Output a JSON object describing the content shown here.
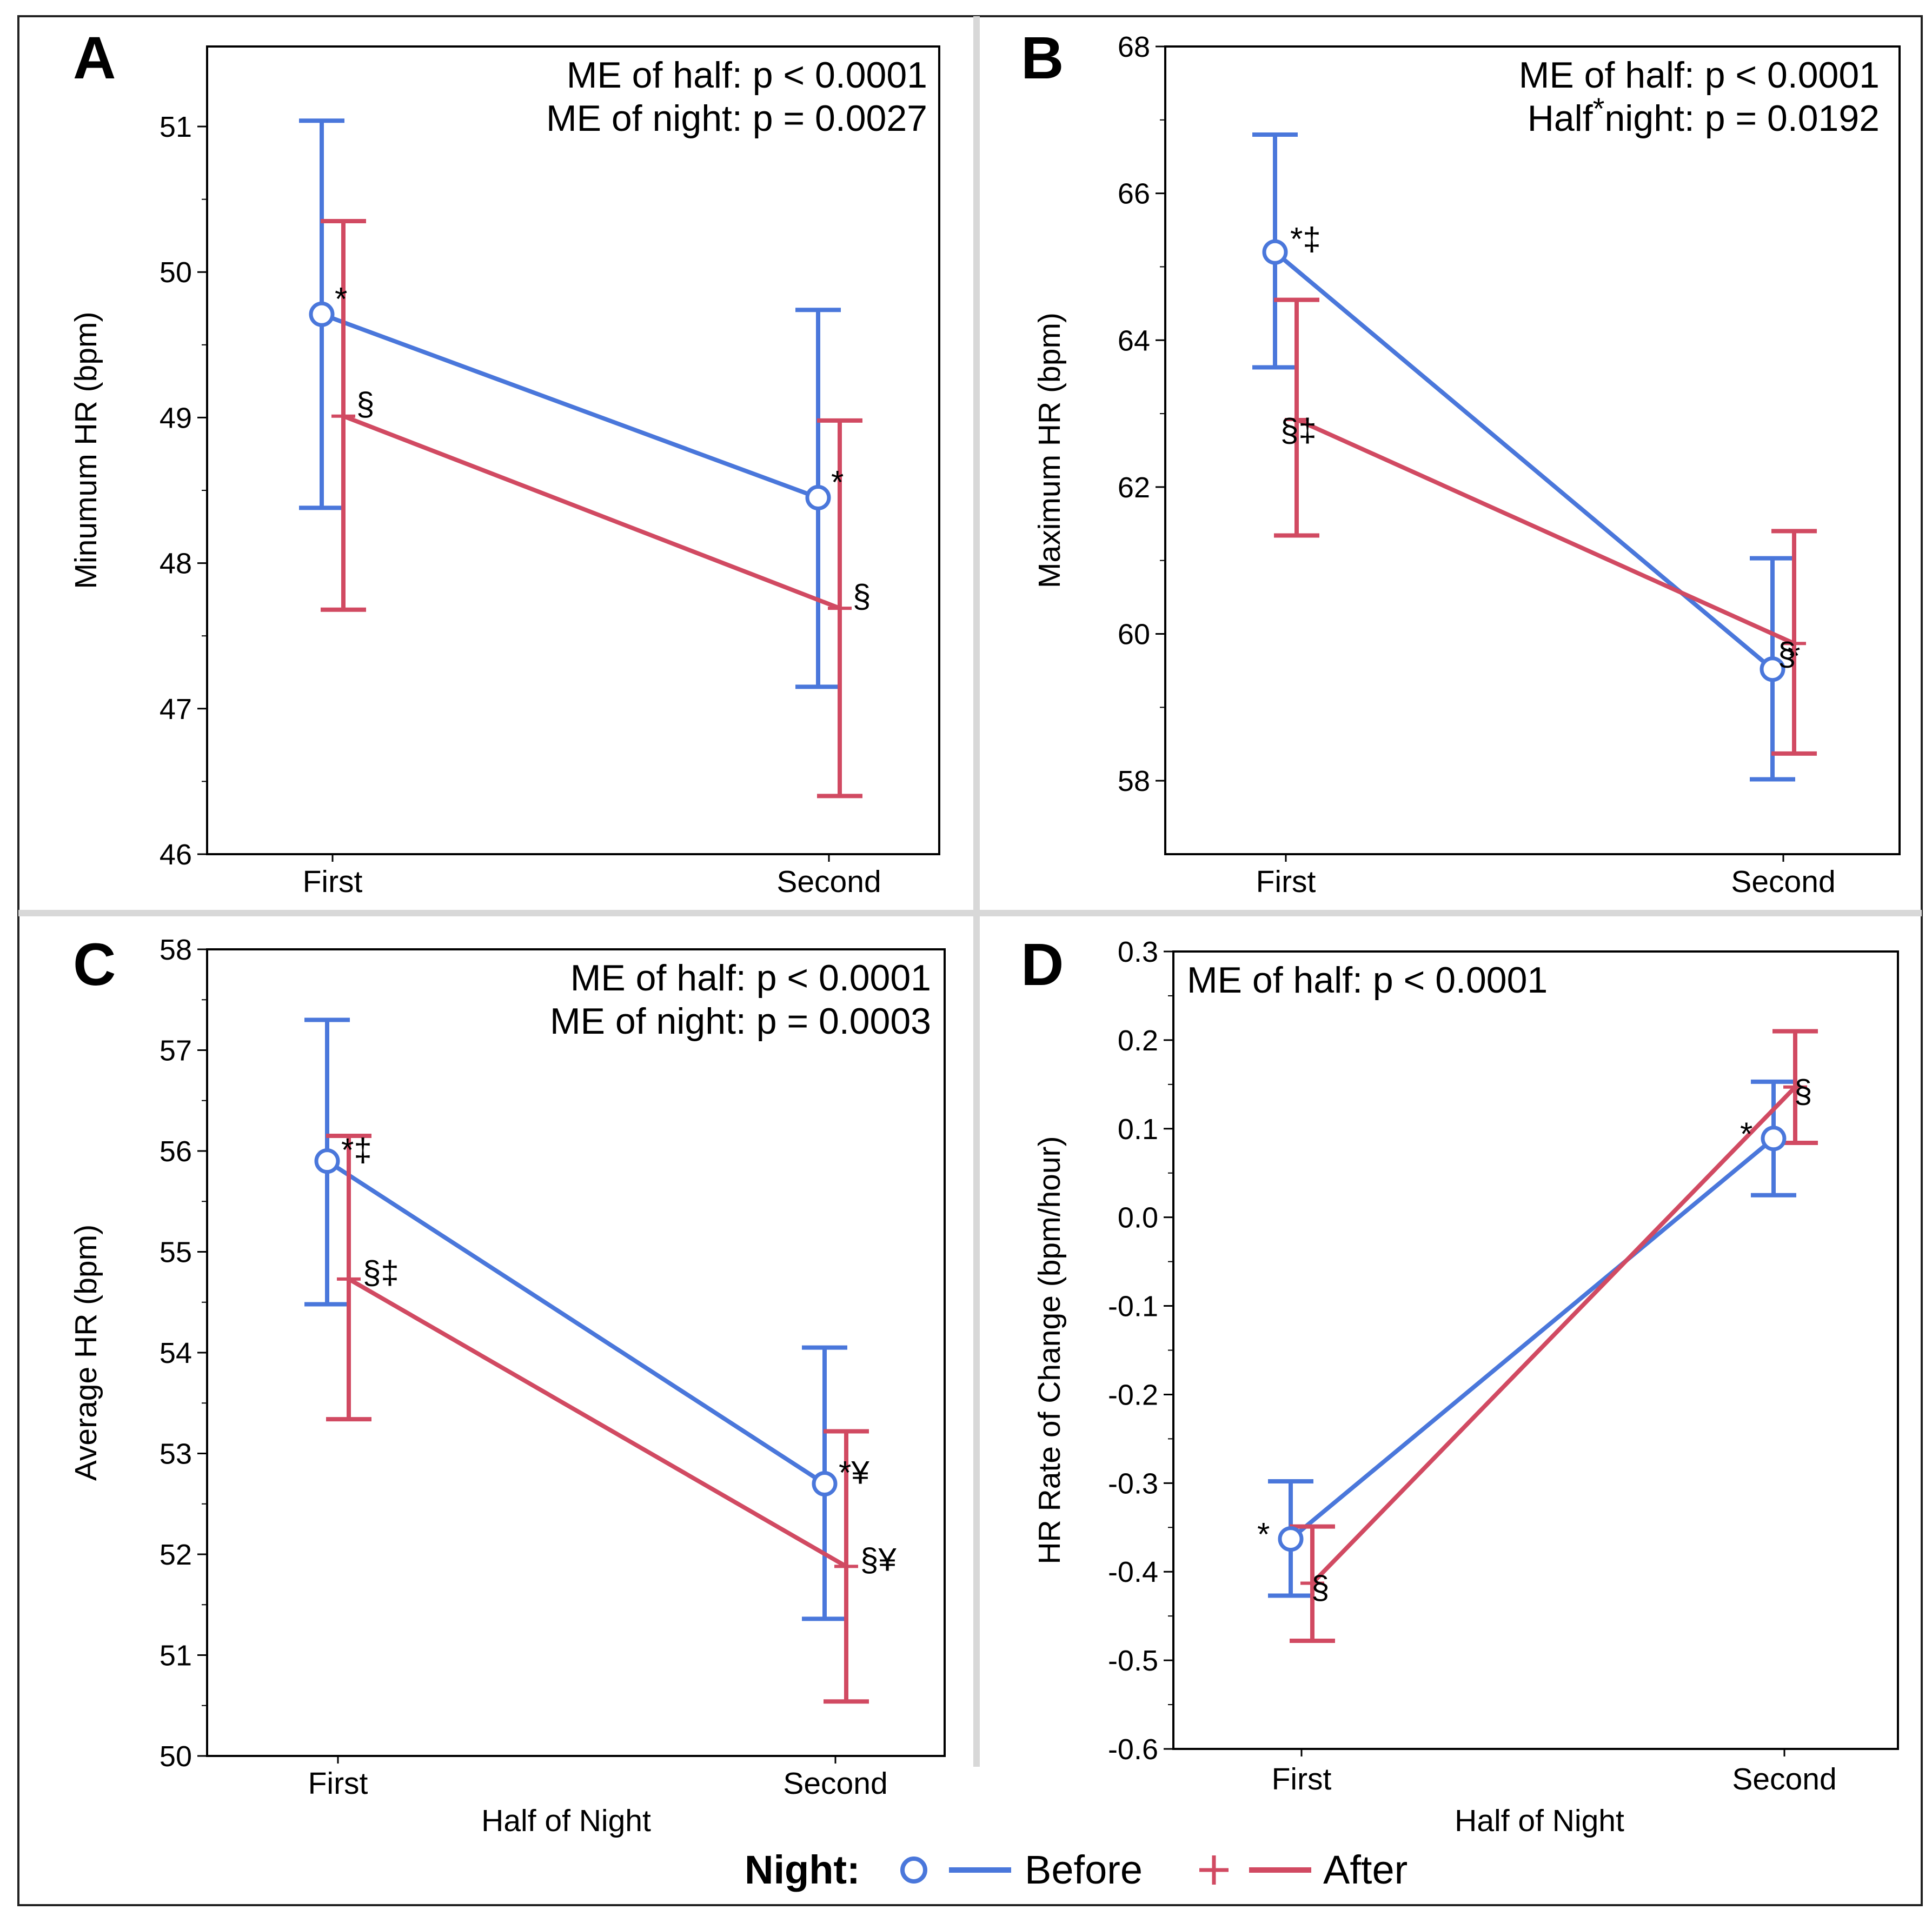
{
  "colors": {
    "before": "#4a77db",
    "after": "#d14a62",
    "divider": "#d8d8d8",
    "frame": "#000000"
  },
  "legend": {
    "title": "Night:",
    "before_label": "Before",
    "after_label": "After",
    "before_marker": "circle",
    "after_marker": "plus"
  },
  "shared": {
    "xlabel": "Half of Night"
  },
  "chart_data": [
    {
      "type": "line",
      "panel": "A",
      "stats": [
        "ME of half: p < 0.0001",
        "ME of night: p = 0.0027"
      ],
      "ylabel": "Minumum HR (bpm)",
      "xlabel": "",
      "categories": [
        "First",
        "Second"
      ],
      "ylim": [
        46,
        51.55
      ],
      "yticks": [
        46,
        47,
        48,
        49,
        50,
        51
      ],
      "yticklabels": [
        "46",
        "47",
        "48",
        "49",
        "50",
        "51"
      ],
      "series": [
        {
          "name": "Before",
          "values": [
            49.71,
            48.45
          ],
          "lower": [
            48.38,
            47.15
          ],
          "upper": [
            51.04,
            49.74
          ],
          "labels": [
            "*",
            "*"
          ]
        },
        {
          "name": "After",
          "values": [
            49.01,
            47.69
          ],
          "lower": [
            47.68,
            46.4
          ],
          "upper": [
            50.35,
            48.98
          ],
          "labels": [
            "§",
            "§"
          ]
        }
      ]
    },
    {
      "type": "line",
      "panel": "B",
      "stats": [
        "ME of half: p < 0.0001",
        "Half",
        "*",
        "night: p = 0.0192"
      ],
      "ylabel": "Maximum HR (bpm)",
      "xlabel": "",
      "categories": [
        "First",
        "Second"
      ],
      "ylim": [
        57,
        68
      ],
      "yticks": [
        58,
        60,
        62,
        64,
        66,
        68
      ],
      "yticklabels": [
        "58",
        "60",
        "62",
        "64",
        "66",
        "68"
      ],
      "series": [
        {
          "name": "Before",
          "values": [
            65.2,
            59.52
          ],
          "lower": [
            63.63,
            58.02
          ],
          "upper": [
            66.8,
            61.03
          ],
          "labels": [
            "*‡",
            "*"
          ]
        },
        {
          "name": "After",
          "values": [
            62.92,
            59.87
          ],
          "lower": [
            61.34,
            58.37
          ],
          "upper": [
            64.55,
            61.4
          ],
          "labels": [
            "§‡",
            "§"
          ]
        }
      ]
    },
    {
      "type": "line",
      "panel": "C",
      "stats": [
        "ME of half: p < 0.0001",
        "ME of night: p = 0.0003"
      ],
      "ylabel": "Average HR (bpm)",
      "xlabel": "Half of Night",
      "categories": [
        "First",
        "Second"
      ],
      "ylim": [
        50,
        58
      ],
      "yticks": [
        50,
        51,
        52,
        53,
        54,
        55,
        56,
        57,
        58
      ],
      "yticklabels": [
        "50",
        "51",
        "52",
        "53",
        "54",
        "55",
        "56",
        "57",
        "58"
      ],
      "series": [
        {
          "name": "Before",
          "values": [
            55.9,
            52.7
          ],
          "lower": [
            54.48,
            51.36
          ],
          "upper": [
            57.3,
            54.05
          ],
          "labels": [
            "*‡",
            "*¥"
          ]
        },
        {
          "name": "After",
          "values": [
            54.73,
            51.88
          ],
          "lower": [
            53.34,
            50.54
          ],
          "upper": [
            56.15,
            53.22
          ],
          "labels": [
            "§‡",
            "§¥"
          ]
        }
      ]
    },
    {
      "type": "line",
      "panel": "D",
      "stats": [
        "ME of half: p < 0.0001"
      ],
      "ylabel": "HR Rate of Change (bpm/hour)",
      "xlabel": "Half of Night",
      "categories": [
        "First",
        "Second"
      ],
      "ylim": [
        -0.6,
        0.3
      ],
      "yticks": [
        -0.6,
        -0.5,
        -0.4,
        -0.3,
        -0.2,
        -0.1,
        0.0,
        0.1,
        0.2,
        0.3
      ],
      "yticklabels": [
        "-0.6",
        "-0.5",
        "-0.4",
        "-0.3",
        "-0.2",
        "-0.1",
        "0.0",
        "0.1",
        "0.2",
        "0.3"
      ],
      "series": [
        {
          "name": "Before",
          "values": [
            -0.363,
            0.089
          ],
          "lower": [
            -0.427,
            0.025
          ],
          "upper": [
            -0.298,
            0.153
          ],
          "labels": [
            "*",
            "*"
          ]
        },
        {
          "name": "After",
          "values": [
            -0.413,
            0.147
          ],
          "lower": [
            -0.478,
            0.084
          ],
          "upper": [
            -0.349,
            0.21
          ],
          "labels": [
            "§",
            "§"
          ]
        }
      ]
    }
  ]
}
